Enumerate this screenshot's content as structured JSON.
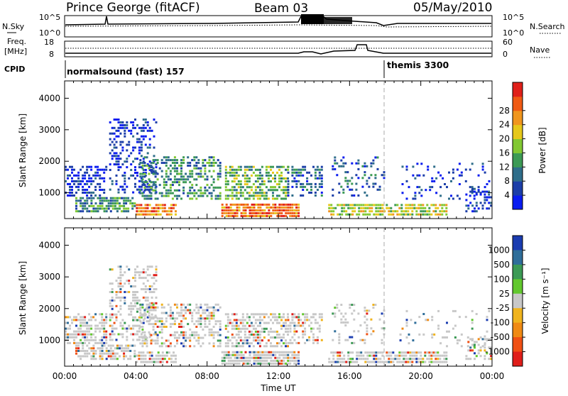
{
  "header": {
    "station": "Prince George (fitACF)",
    "beam": "Beam 03",
    "date": "05/May/2010"
  },
  "top_panels": {
    "nsky_label": "N.Sky",
    "nsky_ticks": [
      "10^5",
      "10^0"
    ],
    "nsearch_label": "N.Search",
    "nsearch_ticks": [
      "10^5",
      "10^0"
    ],
    "freq_label_1": "Freq.",
    "freq_label_2": "[MHz]",
    "freq_ticks": [
      "18",
      "8"
    ],
    "nave_label": "Nave",
    "nave_ticks": [
      "60",
      "0"
    ],
    "cpid_label": "CPID",
    "cpid_segments": [
      {
        "label": "normalsound (fast) 157",
        "start": "00:00"
      },
      {
        "label": "themis 3300",
        "start": "18:00"
      }
    ]
  },
  "chart_data": [
    {
      "type": "heatmap",
      "title": "Power",
      "parameter": "Power",
      "xlabel": "",
      "ylabel": "Slant Range [km]",
      "x_ticks": [
        "00:00",
        "04:00",
        "08:00",
        "12:00",
        "16:00",
        "20:00",
        "00:00"
      ],
      "y_ticks": [
        1000,
        2000,
        3000,
        4000
      ],
      "ylim": [
        180,
        4550
      ],
      "colorbar_label": "Power [dB]",
      "colorbar_ticks": [
        "4",
        "8",
        "12",
        "16",
        "20",
        "24",
        "28"
      ],
      "colorbar_colors": [
        "#0a1cf0",
        "#1c3ea8",
        "#2f6e8a",
        "#3c9a55",
        "#82c832",
        "#e6c81a",
        "#f0961e",
        "#f05a14",
        "#e0201a"
      ],
      "dashed_marker": "18:00"
    },
    {
      "type": "heatmap",
      "title": "Velocity",
      "parameter": "Velocity",
      "xlabel": "Time UT",
      "ylabel": "Slant Range [km]",
      "x_ticks": [
        "00:00",
        "04:00",
        "08:00",
        "12:00",
        "16:00",
        "20:00",
        "00:00"
      ],
      "y_ticks": [
        1000,
        2000,
        3000,
        4000
      ],
      "ylim": [
        180,
        4550
      ],
      "colorbar_label": "Velocity [m s⁻¹]",
      "colorbar_ticks": [
        "1000",
        "500",
        "100",
        "25",
        "-25",
        "-100",
        "-500",
        "-1000"
      ],
      "colorbar_colors": [
        "#1a3cb0",
        "#2f6e9a",
        "#3c9a55",
        "#62c82e",
        "#c8c8c8",
        "#f0b41e",
        "#f08a14",
        "#f05014",
        "#e01e1a"
      ],
      "dashed_marker": "18:00"
    }
  ]
}
